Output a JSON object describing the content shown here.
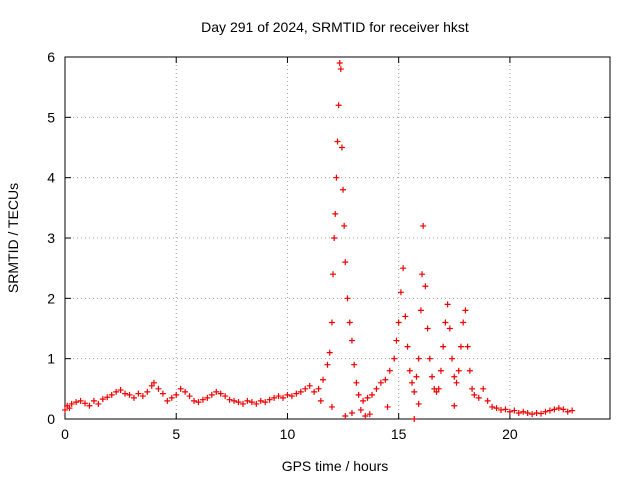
{
  "chart_data": {
    "type": "scatter",
    "title": "Day 291 of 2024, SRMTID for receiver hkst",
    "xlabel": "GPS time / hours",
    "ylabel": "SRMTID / TECUs",
    "xlim": [
      0,
      24.5
    ],
    "ylim": [
      0,
      6
    ],
    "xticks": [
      0,
      5,
      10,
      15,
      20
    ],
    "yticks": [
      0,
      1,
      2,
      3,
      4,
      5,
      6
    ],
    "grid": true,
    "marker": "+",
    "series": [
      {
        "name": "SRMTID",
        "color": "#ee0000",
        "points": [
          [
            0.0,
            0.15
          ],
          [
            0.1,
            0.22
          ],
          [
            0.2,
            0.18
          ],
          [
            0.3,
            0.25
          ],
          [
            0.5,
            0.28
          ],
          [
            0.7,
            0.3
          ],
          [
            0.9,
            0.26
          ],
          [
            1.1,
            0.22
          ],
          [
            1.3,
            0.3
          ],
          [
            1.5,
            0.25
          ],
          [
            1.7,
            0.33
          ],
          [
            1.9,
            0.36
          ],
          [
            2.1,
            0.4
          ],
          [
            2.3,
            0.45
          ],
          [
            2.5,
            0.48
          ],
          [
            2.7,
            0.42
          ],
          [
            2.9,
            0.4
          ],
          [
            3.1,
            0.35
          ],
          [
            3.3,
            0.42
          ],
          [
            3.5,
            0.38
          ],
          [
            3.7,
            0.45
          ],
          [
            3.9,
            0.55
          ],
          [
            4.0,
            0.6
          ],
          [
            4.2,
            0.5
          ],
          [
            4.4,
            0.42
          ],
          [
            4.6,
            0.3
          ],
          [
            4.8,
            0.35
          ],
          [
            5.0,
            0.4
          ],
          [
            5.2,
            0.5
          ],
          [
            5.4,
            0.45
          ],
          [
            5.6,
            0.38
          ],
          [
            5.8,
            0.3
          ],
          [
            6.0,
            0.28
          ],
          [
            6.2,
            0.32
          ],
          [
            6.4,
            0.35
          ],
          [
            6.6,
            0.4
          ],
          [
            6.8,
            0.45
          ],
          [
            7.0,
            0.42
          ],
          [
            7.2,
            0.38
          ],
          [
            7.4,
            0.32
          ],
          [
            7.6,
            0.3
          ],
          [
            7.8,
            0.28
          ],
          [
            8.0,
            0.25
          ],
          [
            8.2,
            0.3
          ],
          [
            8.4,
            0.28
          ],
          [
            8.6,
            0.25
          ],
          [
            8.8,
            0.3
          ],
          [
            9.0,
            0.28
          ],
          [
            9.2,
            0.32
          ],
          [
            9.4,
            0.35
          ],
          [
            9.6,
            0.38
          ],
          [
            9.8,
            0.35
          ],
          [
            10.0,
            0.4
          ],
          [
            10.2,
            0.38
          ],
          [
            10.4,
            0.42
          ],
          [
            10.6,
            0.45
          ],
          [
            10.8,
            0.5
          ],
          [
            11.0,
            0.55
          ],
          [
            11.2,
            0.45
          ],
          [
            11.4,
            0.5
          ],
          [
            11.6,
            0.65
          ],
          [
            11.8,
            0.9
          ],
          [
            11.9,
            1.1
          ],
          [
            12.0,
            1.6
          ],
          [
            12.05,
            2.4
          ],
          [
            12.1,
            3.0
          ],
          [
            12.15,
            3.4
          ],
          [
            12.2,
            4.0
          ],
          [
            12.25,
            4.6
          ],
          [
            12.3,
            5.2
          ],
          [
            12.35,
            5.9
          ],
          [
            12.4,
            5.8
          ],
          [
            12.45,
            4.5
          ],
          [
            12.5,
            3.8
          ],
          [
            12.55,
            3.2
          ],
          [
            12.6,
            2.6
          ],
          [
            12.7,
            2.0
          ],
          [
            12.8,
            1.6
          ],
          [
            12.9,
            1.3
          ],
          [
            13.0,
            0.9
          ],
          [
            13.1,
            0.6
          ],
          [
            13.2,
            0.4
          ],
          [
            13.4,
            0.3
          ],
          [
            13.6,
            0.35
          ],
          [
            13.8,
            0.4
          ],
          [
            14.0,
            0.5
          ],
          [
            14.2,
            0.6
          ],
          [
            14.4,
            0.65
          ],
          [
            14.6,
            0.8
          ],
          [
            14.8,
            1.0
          ],
          [
            14.9,
            1.3
          ],
          [
            15.0,
            1.6
          ],
          [
            15.1,
            2.1
          ],
          [
            15.2,
            2.5
          ],
          [
            15.3,
            1.7
          ],
          [
            15.4,
            1.2
          ],
          [
            15.5,
            0.8
          ],
          [
            15.6,
            0.6
          ],
          [
            15.7,
            0.45
          ],
          [
            15.8,
            0.7
          ],
          [
            15.9,
            1.0
          ],
          [
            16.0,
            1.8
          ],
          [
            16.05,
            2.4
          ],
          [
            16.1,
            3.2
          ],
          [
            16.2,
            2.2
          ],
          [
            16.3,
            1.5
          ],
          [
            16.4,
            1.0
          ],
          [
            16.5,
            0.7
          ],
          [
            16.6,
            0.5
          ],
          [
            16.7,
            0.45
          ],
          [
            16.8,
            0.5
          ],
          [
            16.9,
            0.8
          ],
          [
            17.0,
            1.2
          ],
          [
            17.1,
            1.6
          ],
          [
            17.2,
            1.9
          ],
          [
            17.3,
            1.5
          ],
          [
            17.4,
            1.0
          ],
          [
            17.5,
            0.7
          ],
          [
            17.6,
            0.6
          ],
          [
            17.7,
            0.8
          ],
          [
            17.8,
            1.2
          ],
          [
            17.9,
            1.6
          ],
          [
            18.0,
            1.8
          ],
          [
            18.1,
            1.2
          ],
          [
            18.2,
            0.8
          ],
          [
            18.3,
            0.5
          ],
          [
            18.4,
            0.4
          ],
          [
            18.6,
            0.35
          ],
          [
            18.8,
            0.5
          ],
          [
            19.0,
            0.3
          ],
          [
            19.2,
            0.2
          ],
          [
            19.4,
            0.18
          ],
          [
            19.6,
            0.15
          ],
          [
            19.8,
            0.16
          ],
          [
            20.0,
            0.12
          ],
          [
            20.2,
            0.14
          ],
          [
            20.4,
            0.1
          ],
          [
            20.6,
            0.12
          ],
          [
            20.8,
            0.1
          ],
          [
            21.0,
            0.08
          ],
          [
            21.2,
            0.1
          ],
          [
            21.4,
            0.09
          ],
          [
            21.6,
            0.12
          ],
          [
            21.8,
            0.14
          ],
          [
            22.0,
            0.16
          ],
          [
            22.2,
            0.18
          ],
          [
            22.4,
            0.16
          ],
          [
            22.6,
            0.12
          ],
          [
            22.8,
            0.14
          ],
          [
            15.7,
            0.0
          ],
          [
            13.5,
            0.05
          ],
          [
            13.7,
            0.08
          ],
          [
            12.9,
            0.1
          ],
          [
            13.3,
            0.15
          ],
          [
            14.5,
            0.2
          ],
          [
            15.9,
            0.25
          ],
          [
            17.5,
            0.22
          ],
          [
            11.5,
            0.3
          ],
          [
            12.0,
            0.2
          ],
          [
            12.6,
            0.05
          ]
        ]
      }
    ]
  }
}
